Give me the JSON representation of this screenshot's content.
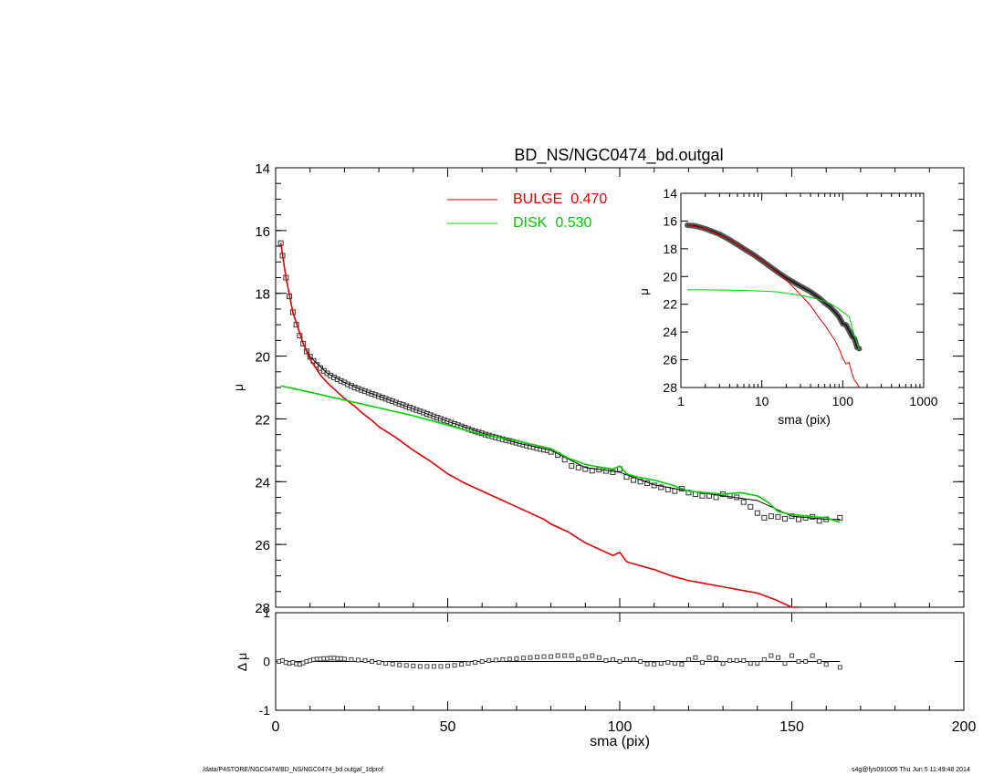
{
  "chart_data": [
    {
      "type": "line",
      "title": "BD_NS/NGC0474_bd.outgal",
      "xlabel": "",
      "ylabel": "μ",
      "xlim": [
        0,
        200
      ],
      "ylim": [
        28,
        14
      ],
      "y_inverted": true,
      "x_ticks": [
        0,
        50,
        100,
        150,
        200
      ],
      "y_ticks": [
        14,
        16,
        18,
        20,
        22,
        24,
        26,
        28
      ],
      "y_tick_labels": [
        "14",
        "16",
        "18",
        "20",
        "22",
        "24",
        "26",
        "28"
      ],
      "legend": [
        {
          "label": "BULGE",
          "value": "0.470",
          "color": "#e60000"
        },
        {
          "label": "DISK",
          "value": "0.530",
          "color": "#00d000"
        }
      ],
      "legend_placement": "top-center",
      "series": [
        {
          "name": "data",
          "style": "squares",
          "x": [
            1.5,
            2,
            3,
            4,
            5,
            6,
            7,
            8,
            9,
            10,
            11,
            12,
            13,
            14,
            15,
            16,
            17,
            18,
            19,
            20,
            21,
            22,
            23,
            24,
            25,
            26,
            27,
            28,
            29,
            30,
            31,
            32,
            33,
            34,
            35,
            36,
            37,
            38,
            39,
            40,
            41,
            42,
            43,
            44,
            45,
            46,
            47,
            48,
            49,
            50,
            51,
            52,
            53,
            54,
            55,
            56,
            57,
            58,
            59,
            60,
            61,
            62,
            63,
            64,
            65,
            66,
            67,
            68,
            69,
            70,
            71,
            72,
            73,
            74,
            75,
            76,
            77,
            78,
            79,
            80,
            82,
            84,
            86,
            88,
            90,
            92,
            94,
            96,
            98,
            100,
            102,
            104,
            106,
            108,
            110,
            112,
            114,
            116,
            118,
            120,
            122,
            124,
            126,
            128,
            130,
            132,
            134,
            136,
            138,
            140,
            142,
            144,
            146,
            148,
            150,
            152,
            154,
            156,
            158,
            160,
            164
          ],
          "y": [
            16.4,
            16.8,
            17.5,
            18.1,
            18.6,
            19.0,
            19.35,
            19.6,
            19.85,
            20.02,
            20.15,
            20.28,
            20.38,
            20.47,
            20.55,
            20.62,
            20.68,
            20.74,
            20.79,
            20.84,
            20.9,
            20.95,
            21.0,
            21.04,
            21.08,
            21.12,
            21.16,
            21.2,
            21.24,
            21.28,
            21.32,
            21.36,
            21.4,
            21.44,
            21.48,
            21.52,
            21.56,
            21.6,
            21.64,
            21.68,
            21.72,
            21.76,
            21.8,
            21.84,
            21.88,
            21.92,
            21.96,
            22.0,
            22.04,
            22.08,
            22.12,
            22.16,
            22.2,
            22.24,
            22.28,
            22.32,
            22.36,
            22.4,
            22.43,
            22.46,
            22.5,
            22.53,
            22.56,
            22.59,
            22.62,
            22.65,
            22.68,
            22.7,
            22.73,
            22.76,
            22.79,
            22.82,
            22.85,
            22.88,
            22.9,
            22.93,
            22.96,
            22.98,
            23.0,
            23.05,
            23.15,
            23.3,
            23.5,
            23.55,
            23.6,
            23.65,
            23.62,
            23.66,
            23.7,
            23.6,
            23.85,
            23.95,
            24.0,
            24.05,
            24.12,
            24.18,
            24.25,
            24.3,
            24.22,
            24.35,
            24.4,
            24.45,
            24.45,
            24.5,
            24.4,
            24.45,
            24.5,
            24.65,
            24.8,
            25.0,
            25.15,
            25.1,
            25.12,
            25.18,
            25.1,
            25.2,
            25.15,
            25.12,
            25.25,
            25.2,
            25.15
          ]
        },
        {
          "name": "model",
          "style": "line",
          "color": "#000000",
          "x": [
            1.5,
            3,
            5,
            8,
            10,
            15,
            20,
            25,
            30,
            40,
            50,
            60,
            70,
            80,
            90,
            100,
            110,
            120,
            130,
            140,
            150,
            160,
            164
          ],
          "y": [
            16.4,
            17.5,
            18.6,
            19.6,
            20.02,
            20.55,
            20.84,
            21.08,
            21.28,
            21.68,
            22.08,
            22.45,
            22.76,
            23.0,
            23.55,
            23.7,
            24.1,
            24.3,
            24.45,
            24.6,
            25.1,
            25.2,
            25.2
          ]
        },
        {
          "name": "BULGE",
          "color": "#e60000",
          "x": [
            1.5,
            3,
            5,
            8,
            10,
            13,
            15,
            18,
            20,
            23,
            25,
            28,
            30,
            35,
            40,
            45,
            50,
            55,
            60,
            65,
            70,
            75,
            78,
            80,
            85,
            90,
            95,
            98,
            100,
            102,
            105,
            110,
            115,
            120,
            125,
            130,
            135,
            140,
            145,
            150,
            152
          ],
          "y": [
            16.4,
            17.5,
            18.6,
            19.6,
            20.1,
            20.6,
            20.85,
            21.15,
            21.35,
            21.6,
            21.8,
            22.05,
            22.25,
            22.6,
            23.0,
            23.35,
            23.75,
            24.05,
            24.3,
            24.55,
            24.8,
            25.05,
            25.2,
            25.35,
            25.6,
            25.95,
            26.2,
            26.35,
            26.25,
            26.55,
            26.65,
            26.8,
            27.0,
            27.15,
            27.25,
            27.35,
            27.45,
            27.55,
            27.75,
            28.0,
            28.0
          ]
        },
        {
          "name": "DISK",
          "color": "#00d000",
          "x": [
            1.5,
            10,
            20,
            30,
            40,
            50,
            60,
            70,
            80,
            85,
            90,
            95,
            98,
            100,
            102,
            105,
            110,
            115,
            120,
            125,
            130,
            135,
            140,
            143,
            146,
            150,
            155,
            160,
            164
          ],
          "y": [
            20.95,
            21.15,
            21.4,
            21.65,
            21.9,
            22.2,
            22.5,
            22.7,
            22.95,
            23.25,
            23.45,
            23.55,
            23.6,
            23.5,
            23.75,
            23.85,
            23.95,
            24.1,
            24.3,
            24.35,
            24.4,
            24.35,
            24.45,
            24.65,
            24.95,
            25.05,
            25.1,
            25.15,
            25.3
          ]
        }
      ]
    },
    {
      "type": "scatter",
      "xlabel": "sma (pix)",
      "ylabel": "Δ μ",
      "xlim": [
        0,
        200
      ],
      "ylim": [
        -1,
        1
      ],
      "y_ticks": [
        -1,
        0,
        1
      ],
      "series": [
        {
          "name": "residual",
          "x": [
            1,
            2,
            3,
            4,
            5,
            6,
            7,
            8,
            9,
            10,
            11,
            12,
            13,
            14,
            15,
            16,
            17,
            18,
            19,
            20,
            22,
            24,
            26,
            28,
            30,
            32,
            34,
            36,
            38,
            40,
            42,
            44,
            46,
            48,
            50,
            52,
            54,
            56,
            58,
            60,
            62,
            64,
            66,
            68,
            70,
            72,
            74,
            76,
            78,
            80,
            82,
            84,
            86,
            88,
            90,
            92,
            94,
            96,
            98,
            100,
            102,
            104,
            106,
            108,
            110,
            112,
            114,
            116,
            118,
            120,
            122,
            124,
            126,
            128,
            130,
            132,
            134,
            136,
            138,
            140,
            142,
            144,
            146,
            148,
            150,
            152,
            154,
            156,
            158,
            160,
            164
          ],
          "y": [
            0.0,
            0.02,
            -0.02,
            -0.04,
            -0.02,
            -0.05,
            -0.06,
            -0.03,
            0.0,
            0.02,
            0.04,
            0.05,
            0.05,
            0.06,
            0.06,
            0.07,
            0.07,
            0.06,
            0.06,
            0.05,
            0.04,
            0.03,
            0.02,
            0.0,
            -0.02,
            -0.04,
            -0.05,
            -0.07,
            -0.08,
            -0.09,
            -0.1,
            -0.1,
            -0.1,
            -0.1,
            -0.09,
            -0.08,
            -0.06,
            -0.04,
            -0.02,
            0.0,
            0.02,
            0.03,
            0.04,
            0.05,
            0.06,
            0.07,
            0.08,
            0.09,
            0.1,
            0.1,
            0.12,
            0.12,
            0.12,
            0.05,
            0.1,
            0.12,
            0.08,
            0.02,
            0.04,
            0.0,
            0.04,
            0.04,
            0.0,
            -0.05,
            -0.06,
            -0.04,
            -0.02,
            -0.04,
            -0.06,
            0.04,
            0.08,
            -0.02,
            0.08,
            0.06,
            -0.04,
            0.02,
            0.02,
            0.02,
            -0.04,
            -0.04,
            0.04,
            0.12,
            0.08,
            -0.04,
            0.12,
            0.0,
            0.0,
            0.12,
            0.0,
            -0.06,
            -0.12
          ]
        }
      ]
    },
    {
      "type": "line",
      "xlabel": "sma (pix)",
      "ylabel": "μ",
      "x_scale": "log",
      "xlim": [
        1,
        1000
      ],
      "ylim": [
        28,
        14
      ],
      "x_ticks": [
        1,
        10,
        100,
        1000
      ],
      "y_ticks": [
        14,
        16,
        18,
        20,
        22,
        24,
        26,
        28
      ],
      "series": [
        {
          "name": "data",
          "style": "thick-line",
          "x": [
            1.2,
            1.5,
            2,
            3,
            4,
            5,
            6,
            8,
            10,
            15,
            20,
            30,
            40,
            50,
            60,
            70,
            80,
            90,
            100,
            110,
            120,
            130,
            140,
            150,
            160
          ],
          "y": [
            16.3,
            16.35,
            16.55,
            16.95,
            17.35,
            17.7,
            18.0,
            18.45,
            18.85,
            19.6,
            20.1,
            20.7,
            21.1,
            21.5,
            21.9,
            22.2,
            22.55,
            22.9,
            23.4,
            23.5,
            23.9,
            24.3,
            24.5,
            25.1,
            25.2
          ]
        },
        {
          "name": "BULGE",
          "color": "#e60000",
          "x": [
            1.2,
            2,
            4,
            6,
            10,
            15,
            20,
            30,
            40,
            50,
            60,
            70,
            80,
            90,
            100,
            110,
            120,
            130,
            140,
            150,
            160
          ],
          "y": [
            16.3,
            16.55,
            17.35,
            18.0,
            18.85,
            19.65,
            20.25,
            21.3,
            22.1,
            22.9,
            23.5,
            24.1,
            24.6,
            25.2,
            25.9,
            26.3,
            26.2,
            27.0,
            27.5,
            27.7,
            28.0
          ]
        },
        {
          "name": "DISK",
          "color": "#00d000",
          "x": [
            1.2,
            2,
            4,
            6,
            10,
            15,
            20,
            30,
            40,
            50,
            60,
            70,
            80,
            90,
            100,
            120,
            140,
            160
          ],
          "y": [
            20.95,
            20.96,
            20.98,
            21.0,
            21.05,
            21.1,
            21.2,
            21.35,
            21.5,
            21.65,
            21.8,
            21.95,
            22.15,
            22.35,
            22.55,
            22.9,
            24.3,
            25.3
          ]
        }
      ]
    }
  ],
  "footer": {
    "left": "/data/P4STORE/NGC0474/BD_NS/NGC0474_bd.outgal_1dprof",
    "right": "s4g@fys091005  Thu Jun  5 11:49:48 2014"
  }
}
